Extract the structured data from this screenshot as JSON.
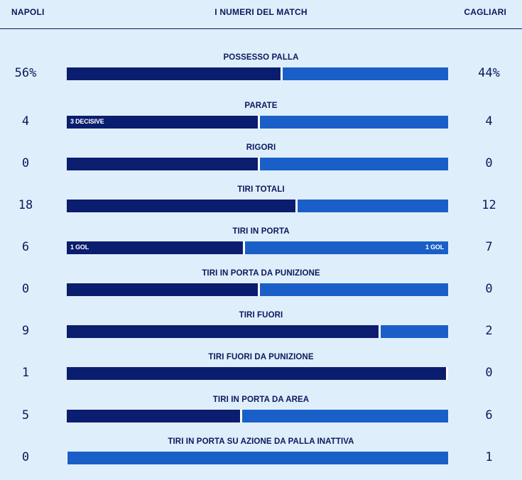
{
  "header": {
    "home_team": "NAPOLI",
    "title": "I NUMERI DEL MATCH",
    "away_team": "CAGLIARI"
  },
  "stats": [
    {
      "label": "POSSESSO PALLA",
      "home": "56%",
      "away": "44%",
      "home_share": 0.56,
      "home_note": "",
      "away_note": ""
    },
    {
      "label": "PARATE",
      "home": "4",
      "away": "4",
      "home_share": 0.5,
      "home_note": "3 DECISIVE",
      "away_note": ""
    },
    {
      "label": "RIGORI",
      "home": "0",
      "away": "0",
      "home_share": 0.5,
      "home_note": "",
      "away_note": ""
    },
    {
      "label": "TIRI TOTALI",
      "home": "18",
      "away": "12",
      "home_share": 0.6,
      "home_note": "",
      "away_note": ""
    },
    {
      "label": "TIRI IN PORTA",
      "home": "6",
      "away": "7",
      "home_share": 0.4615,
      "home_note": "1 GOL",
      "away_note": "1 GOL"
    },
    {
      "label": "TIRI IN PORTA DA PUNIZIONE",
      "home": "0",
      "away": "0",
      "home_share": 0.5,
      "home_note": "",
      "away_note": ""
    },
    {
      "label": "TIRI FUORI",
      "home": "9",
      "away": "2",
      "home_share": 0.8182,
      "home_note": "",
      "away_note": ""
    },
    {
      "label": "TIRI FUORI DA PUNIZIONE",
      "home": "1",
      "away": "0",
      "home_share": 1,
      "home_note": "",
      "away_note": ""
    },
    {
      "label": "TIRI IN PORTA DA AREA",
      "home": "5",
      "away": "6",
      "home_share": 0.4545,
      "home_note": "",
      "away_note": ""
    },
    {
      "label": "TIRI IN PORTA SU AZIONE DA PALLA INATTIVA",
      "home": "0",
      "away": "1",
      "home_share": 0,
      "home_note": "",
      "away_note": ""
    }
  ]
}
